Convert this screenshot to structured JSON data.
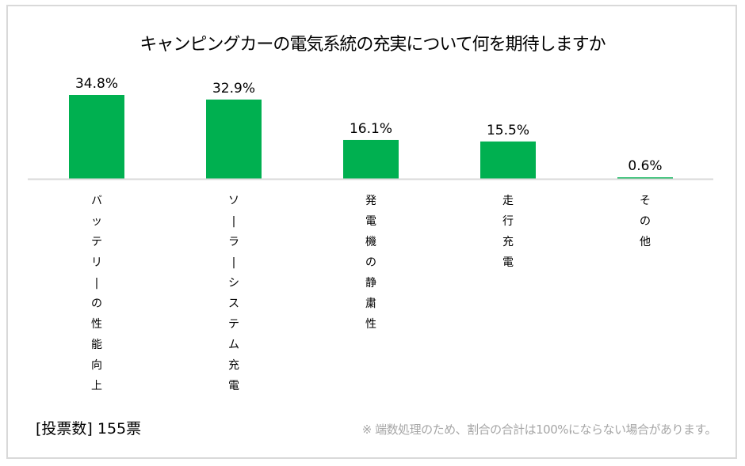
{
  "chart_data": {
    "type": "bar",
    "title": "キャンピングカーの電気系統の充実について何を期待しますか",
    "categories": [
      "バッテリーの性能向上",
      "ソーラーシステム充電",
      "発電機の静粛性",
      "走行充電",
      "その他"
    ],
    "values": [
      34.8,
      32.9,
      16.1,
      15.5,
      0.6
    ],
    "data_labels": [
      "34.8%",
      "32.9%",
      "16.1%",
      "15.5%",
      "0.6%"
    ],
    "xlabel": "",
    "ylabel": "",
    "ylim": [
      0,
      40
    ],
    "grid": false,
    "legend": "none",
    "bar_color": "#00b050",
    "axis_color": "#d9d9d9"
  },
  "footer": {
    "votes": "[投票数] 155票",
    "note": "※ 端数処理のため、割合の合計は100%にならない場合があります。"
  }
}
